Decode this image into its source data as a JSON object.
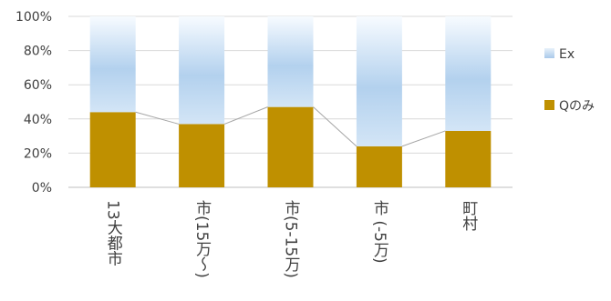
{
  "chart_data": {
    "type": "bar",
    "stacked": "percent",
    "categories": [
      "13大都市",
      "市(15万～)",
      "市(5-15万)",
      "市 (-5万)",
      "町村"
    ],
    "series": [
      {
        "name": "Qのみ",
        "values": [
          44,
          37,
          47,
          24,
          33
        ],
        "color": "#bf9000"
      },
      {
        "name": "Ex",
        "values": [
          56,
          63,
          53,
          76,
          67
        ],
        "color": "#bdd7ee"
      }
    ],
    "connector_line": true,
    "yticks": [
      "0%",
      "20%",
      "40%",
      "60%",
      "80%",
      "100%"
    ],
    "ylim": [
      0,
      100
    ],
    "grid": true,
    "legend_position": "right",
    "legend_order": [
      "Ex",
      "Qのみ"
    ]
  }
}
